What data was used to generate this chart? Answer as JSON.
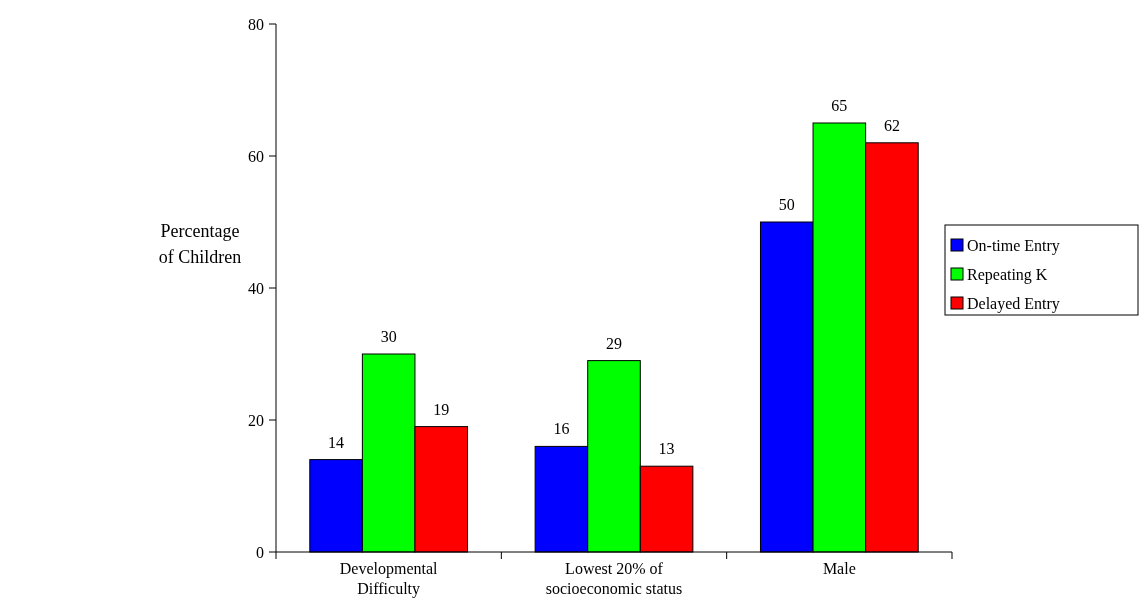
{
  "chart_data": {
    "type": "bar",
    "ylabel": "Percentage\nof Children",
    "categories": [
      "Developmental Difficulty",
      "Lowest 20% of socioeconomic status",
      "Male"
    ],
    "series": [
      {
        "name": "On-time Entry",
        "color": "#0000ff",
        "values": [
          14,
          16,
          50
        ]
      },
      {
        "name": "Repeating K",
        "color": "#00ff00",
        "values": [
          30,
          29,
          65
        ]
      },
      {
        "name": "Delayed Entry",
        "color": "#ff0000",
        "values": [
          19,
          13,
          62
        ]
      }
    ],
    "ylim": [
      0,
      80
    ],
    "yticks": [
      0,
      20,
      40,
      60,
      80
    ],
    "data_labels": true,
    "legend": "right",
    "grid": false
  }
}
